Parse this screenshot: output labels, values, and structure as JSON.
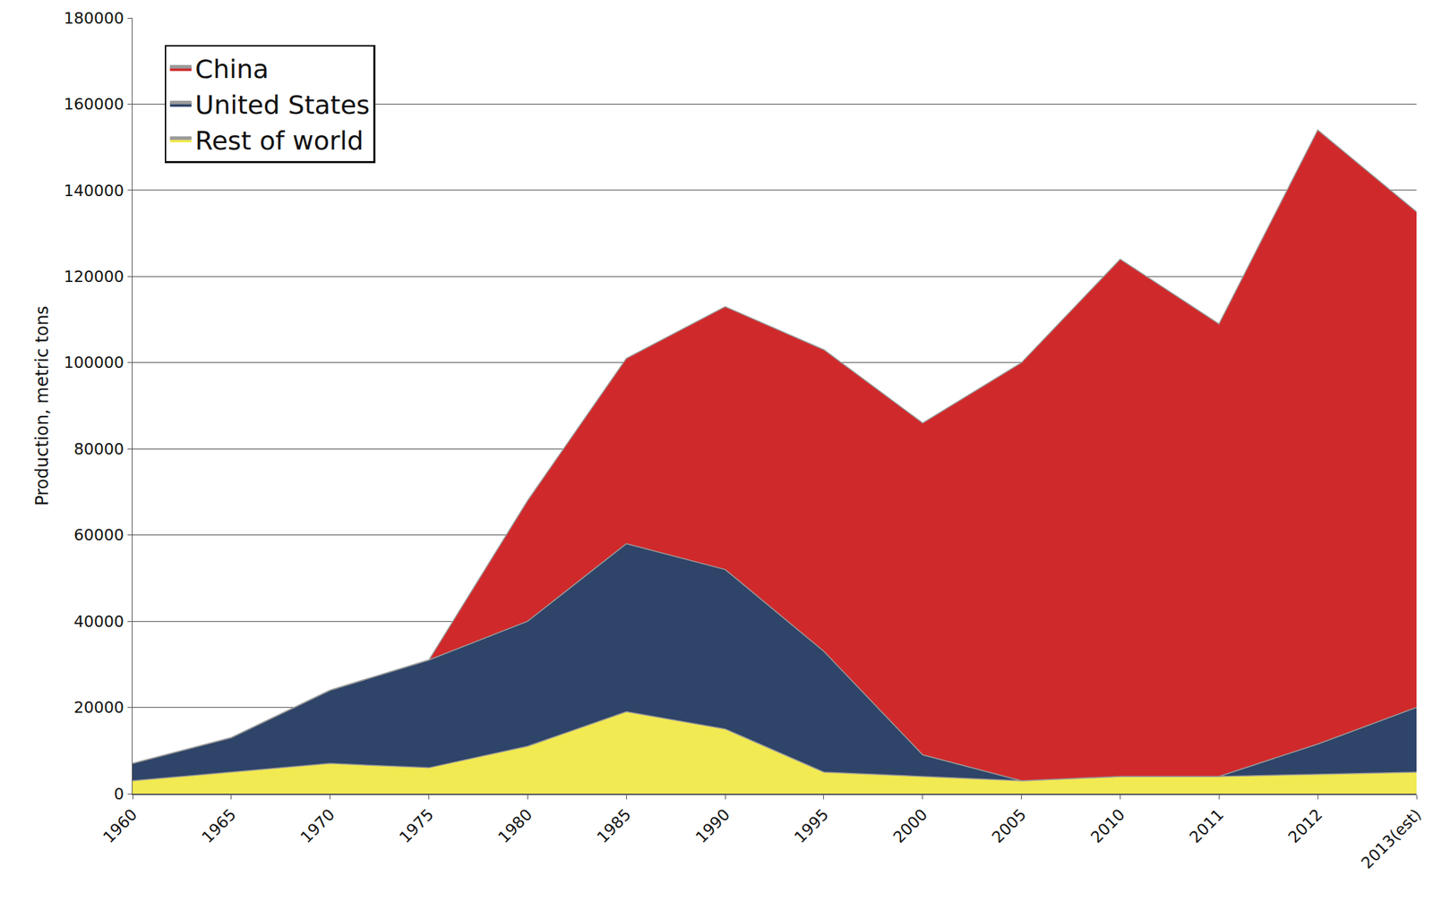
{
  "chart_data": {
    "type": "area",
    "stacked": true,
    "y_label": "Production, metric tons",
    "categories": [
      "1960",
      "1965",
      "1970",
      "1975",
      "1980",
      "1985",
      "1990",
      "1995",
      "2000",
      "2005",
      "2010",
      "2011",
      "2012",
      "2013(est)"
    ],
    "series": [
      {
        "name": "China",
        "color": "#d0292b",
        "values": [
          0,
          0,
          0,
          0,
          28000,
          43000,
          61000,
          70000,
          77000,
          97000,
          120000,
          105000,
          142500,
          115000
        ]
      },
      {
        "name": "United States",
        "color": "#2e4468",
        "values": [
          4000,
          8000,
          17000,
          25000,
          29000,
          39000,
          37000,
          28000,
          5000,
          0,
          0,
          0,
          7000,
          15000
        ]
      },
      {
        "name": "Rest of world",
        "color": "#f2ea52",
        "values": [
          3000,
          5000,
          7000,
          6000,
          11000,
          19000,
          15000,
          5000,
          4000,
          3000,
          4000,
          4000,
          4500,
          5000
        ]
      }
    ],
    "ylim": [
      0,
      180000
    ],
    "yticks": [
      0,
      20000,
      40000,
      60000,
      80000,
      100000,
      120000,
      140000,
      160000,
      180000
    ],
    "grid": true,
    "legend": "top left"
  }
}
